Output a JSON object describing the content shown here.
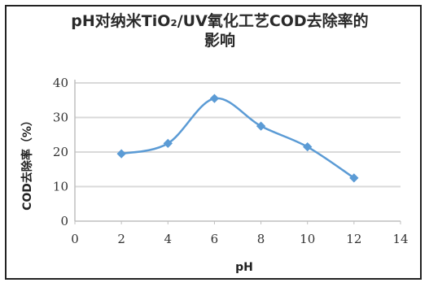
{
  "chart_data": {
    "type": "line",
    "title_line1": "pH对纳米TiO₂/UV氧化工艺COD去除率的",
    "title_line2": "影响",
    "xlabel": "pH",
    "ylabel": "COD去除率（%）",
    "x": [
      2,
      4,
      6,
      8,
      10,
      12
    ],
    "series": [
      {
        "values": [
          19.5,
          22.5,
          35.5,
          27.5,
          21.5,
          12.5
        ]
      }
    ],
    "xlim": [
      0,
      14
    ],
    "ylim": [
      0,
      40
    ],
    "xticks": [
      "0",
      "2",
      "4",
      "6",
      "8",
      "10",
      "12",
      "14"
    ],
    "yticks": [
      "0",
      "10",
      "20",
      "30",
      "40"
    ],
    "grid": true,
    "legend": "none",
    "line_color": "#5b9bd5",
    "grid_color": "#d9d9d9"
  }
}
